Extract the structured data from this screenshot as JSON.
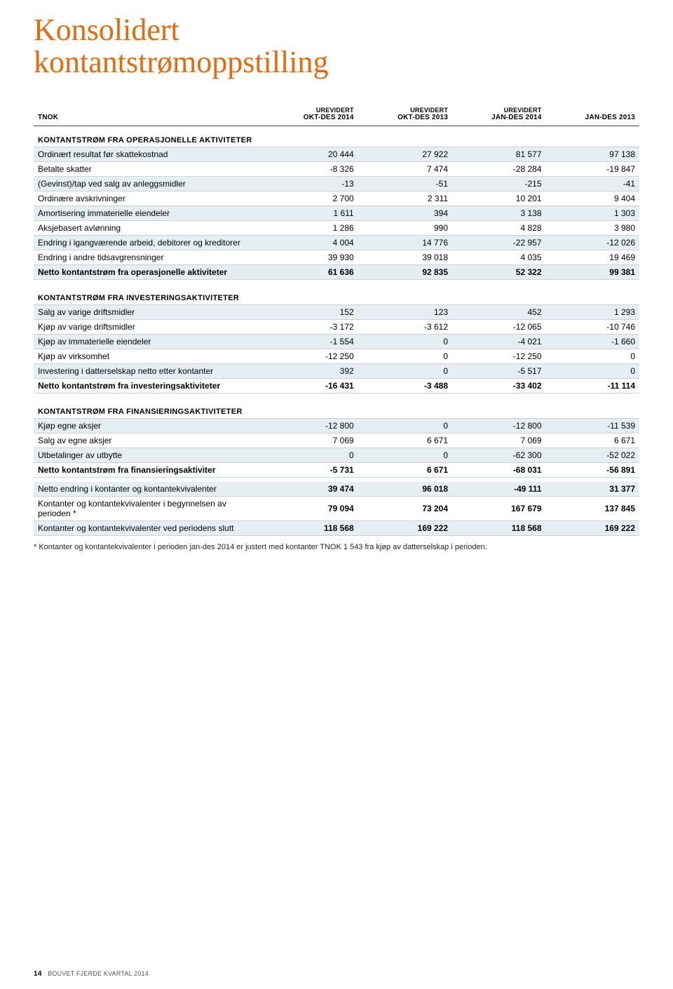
{
  "title": {
    "line1": "Konsolidert",
    "line2": "kontantstrømoppstilling"
  },
  "colors": {
    "accent": "#e8690b",
    "highlight_row": "#e4eef3",
    "rule": "#d0d0d0",
    "header_rule": "#444444",
    "text": "#000000",
    "background": "#ffffff"
  },
  "typography": {
    "title_font": "Georgia, serif",
    "title_size_pt": 33,
    "body_font": "Arial, sans-serif",
    "body_size_pt": 9,
    "header_size_pt": 7.5
  },
  "table": {
    "columns": [
      {
        "top": "",
        "bot": "TNOK",
        "align": "left"
      },
      {
        "top": "UREVIDERT",
        "bot": "OKT-DES 2014",
        "align": "right"
      },
      {
        "top": "UREVIDERT",
        "bot": "OKT-DES 2013",
        "align": "right"
      },
      {
        "top": "UREVIDERT",
        "bot": "JAN-DES 2014",
        "align": "right"
      },
      {
        "top": "",
        "bot": "JAN-DES 2013",
        "align": "right"
      }
    ],
    "sections": [
      {
        "heading": "KONTANTSTRØM FRA OPERASJONELLE AKTIVITETER",
        "rows": [
          {
            "label": "Ordinært resultat før skattekostnad",
            "v": [
              "20 444",
              "27 922",
              "81 577",
              "97 138"
            ],
            "highlight": true
          },
          {
            "label": "Betalte skatter",
            "v": [
              "-8 326",
              "7 474",
              "-28 284",
              "-19 847"
            ]
          },
          {
            "label": "(Gevinst)/tap ved salg av anleggsmidler",
            "v": [
              "-13",
              "-51",
              "-215",
              "-41"
            ],
            "highlight": true
          },
          {
            "label": "Ordinære avskrivninger",
            "v": [
              "2 700",
              "2 311",
              "10 201",
              "9 404"
            ]
          },
          {
            "label": "Amortisering immaterielle eiendeler",
            "v": [
              "1 611",
              "394",
              "3 138",
              "1 303"
            ],
            "highlight": true
          },
          {
            "label": "Aksjebasert avlønning",
            "v": [
              "1 286",
              "990",
              "4 828",
              "3 980"
            ]
          },
          {
            "label": "Endring i igangværende arbeid, debitorer og kreditorer",
            "v": [
              "4 004",
              "14 776",
              "-22 957",
              "-12 026"
            ],
            "highlight": true
          },
          {
            "label": "Endring i andre tidsavgrensninger",
            "v": [
              "39 930",
              "39 018",
              "4 035",
              "19 469"
            ]
          },
          {
            "label": "Netto kontantstrøm fra operasjonelle aktiviteter",
            "v": [
              "61 636",
              "92 835",
              "52 322",
              "99 381"
            ],
            "highlight": true,
            "total": true
          }
        ]
      },
      {
        "heading": "KONTANTSTRØM FRA INVESTERINGSAKTIVITETER",
        "rows": [
          {
            "label": "Salg av varige driftsmidler",
            "v": [
              "152",
              "123",
              "452",
              "1 293"
            ],
            "highlight": true
          },
          {
            "label": "Kjøp av varige driftsmidler",
            "v": [
              "-3 172",
              "-3 612",
              "-12 065",
              "-10 746"
            ]
          },
          {
            "label": "Kjøp av immaterielle eiendeler",
            "v": [
              "-1 554",
              "0",
              "-4 021",
              "-1 660"
            ],
            "highlight": true
          },
          {
            "label": "Kjøp av virksomhet",
            "v": [
              "-12 250",
              "0",
              "-12 250",
              "0"
            ]
          },
          {
            "label": "Investering i datterselskap netto etter kontanter",
            "v": [
              "392",
              "0",
              "-5 517",
              "0"
            ],
            "highlight": true
          },
          {
            "label": "Netto kontantstrøm fra investeringsaktiviteter",
            "v": [
              "-16 431",
              "-3 488",
              "-33 402",
              "-11 114"
            ],
            "total": true
          }
        ]
      },
      {
        "heading": "KONTANTSTRØM FRA FINANSIERINGSAKTIVITETER",
        "rows": [
          {
            "label": "Kjøp egne aksjer",
            "v": [
              "-12 800",
              "0",
              "-12 800",
              "-11 539"
            ],
            "highlight": true
          },
          {
            "label": "Salg av egne aksjer",
            "v": [
              "7 069",
              "6 671",
              "7 069",
              "6 671"
            ]
          },
          {
            "label": "Utbetalinger av utbytte",
            "v": [
              "0",
              "0",
              "-62 300",
              "-52 022"
            ],
            "highlight": true
          },
          {
            "label": "Netto kontantstrøm fra finansieringsaktiviter",
            "v": [
              "-5 731",
              "6 671",
              "-68 031",
              "-56 891"
            ],
            "total": true
          }
        ]
      },
      {
        "heading": "",
        "rows": [
          {
            "label": "Netto endring i kontanter og kontantekvivalenter",
            "v": [
              "39 474",
              "96 018",
              "-49 111",
              "31 377"
            ],
            "highlight": true,
            "bold_values": true
          },
          {
            "label": "Kontanter og kontantekvivalenter i begynnelsen av perioden *",
            "v": [
              "79 094",
              "73 204",
              "167 679",
              "137 845"
            ],
            "bold_values": true
          },
          {
            "label": "Kontanter og kontantekvivalenter ved periodens slutt",
            "v": [
              "118 568",
              "169 222",
              "118 568",
              "169 222"
            ],
            "highlight": true,
            "bold_values": true
          }
        ]
      }
    ]
  },
  "footnote": "* Kontanter og kontantekvivalenter i perioden jan-des 2014 er justert med kontanter TNOK 1 543 fra kjøp av datterselskap i perioden.",
  "footer": {
    "page": "14",
    "text": "BOUVET FJERDE KVARTAL 2014"
  }
}
